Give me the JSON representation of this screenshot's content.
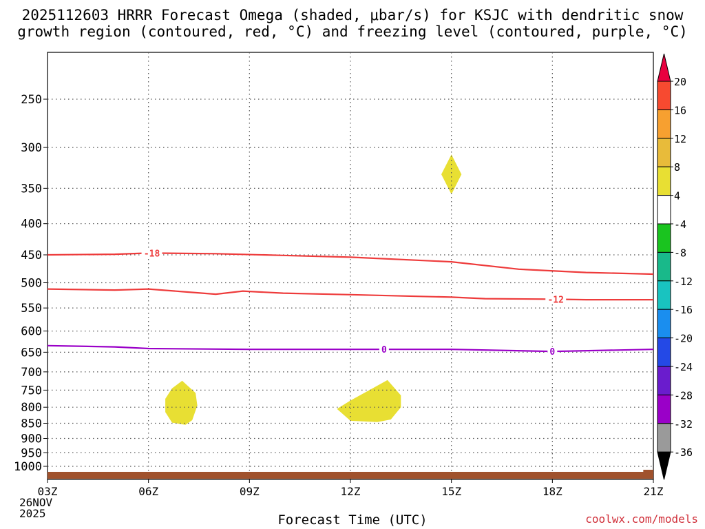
{
  "title_line1": "2025112603 HRRR Forecast Omega (shaded, μbar/s) for KSJC with dendritic snow",
  "title_line2": "growth region (contoured, red, °C) and freezing level (contoured, purple, °C)",
  "credit": "coolwx.com/models",
  "chart_data": {
    "type": "time-height cross section",
    "xlabel": "Forecast Time (UTC)",
    "x_ticks": [
      "03Z",
      "06Z",
      "09Z",
      "12Z",
      "15Z",
      "18Z",
      "21Z"
    ],
    "x_hours": [
      3,
      6,
      9,
      12,
      15,
      18,
      21
    ],
    "xlim": [
      3,
      21
    ],
    "start_date": [
      "26NOV",
      "2025"
    ],
    "y_ticks": [
      250,
      300,
      350,
      400,
      450,
      500,
      550,
      600,
      650,
      700,
      750,
      800,
      850,
      900,
      950,
      1000
    ],
    "ylim_hPa": [
      200,
      1030
    ],
    "y_scale": "log-pressure",
    "contours": [
      {
        "name": "dendritic -18C",
        "color": "#ee3b3b",
        "label": "-18",
        "label_at": 6.1,
        "points": [
          [
            3,
            450
          ],
          [
            5,
            449
          ],
          [
            6,
            447
          ],
          [
            8,
            448
          ],
          [
            10,
            451
          ],
          [
            12,
            454
          ],
          [
            15,
            462
          ],
          [
            17,
            475
          ],
          [
            19,
            481
          ],
          [
            21,
            484
          ]
        ]
      },
      {
        "name": "dendritic -12C",
        "color": "#ee3b3b",
        "label": "-12",
        "label_at": 18.1,
        "points": [
          [
            3,
            512
          ],
          [
            5,
            514
          ],
          [
            6,
            512
          ],
          [
            7,
            517
          ],
          [
            8,
            522
          ],
          [
            8.8,
            516
          ],
          [
            10,
            520
          ],
          [
            12,
            523
          ],
          [
            15,
            528
          ],
          [
            16,
            531
          ],
          [
            18,
            532
          ],
          [
            19,
            533
          ],
          [
            21,
            533
          ]
        ]
      },
      {
        "name": "freezing level 0C",
        "color": "#9a00c8",
        "label": "0",
        "label_at": [
          13,
          18
        ],
        "points": [
          [
            3,
            634
          ],
          [
            5,
            637
          ],
          [
            6,
            641
          ],
          [
            9,
            643
          ],
          [
            12,
            643
          ],
          [
            15,
            643
          ],
          [
            18,
            648
          ],
          [
            21,
            643
          ]
        ]
      }
    ],
    "shaded_regions": [
      {
        "value_range": [
          4,
          8
        ],
        "color": "#e8df33",
        "points": [
          [
            15,
            308
          ],
          [
            15.3,
            332
          ],
          [
            15,
            358
          ],
          [
            14.7,
            332
          ]
        ]
      },
      {
        "value_range": [
          4,
          8
        ],
        "color": "#e8df33",
        "points": [
          [
            7,
            724
          ],
          [
            7.4,
            758
          ],
          [
            7.45,
            795
          ],
          [
            7.3,
            840
          ],
          [
            7.1,
            855
          ],
          [
            6.7,
            848
          ],
          [
            6.5,
            815
          ],
          [
            6.5,
            775
          ],
          [
            6.7,
            745
          ]
        ]
      },
      {
        "value_range": [
          4,
          8
        ],
        "color": "#e8df33",
        "points": [
          [
            13.1,
            722
          ],
          [
            13.5,
            765
          ],
          [
            13.5,
            800
          ],
          [
            13.2,
            838
          ],
          [
            12.8,
            846
          ],
          [
            12,
            842
          ],
          [
            11.6,
            805
          ],
          [
            12,
            780
          ],
          [
            12.6,
            748
          ]
        ]
      }
    ],
    "colorbar": {
      "labels": [
        "20",
        "16",
        "12",
        "8",
        "4",
        "-4",
        "-8",
        "-12",
        "-16",
        "-20",
        "-24",
        "-28",
        "-32",
        "-36"
      ],
      "colors": [
        "#e8003f",
        "#f74a30",
        "#f7a030",
        "#e8bb3a",
        "#e8df33",
        "#ffffff",
        "#1ac41f",
        "#19b98a",
        "#19c3c0",
        "#1a8eef",
        "#2449e6",
        "#6a1ccd",
        "#9a00c8",
        "#9a9a9a",
        "#000000"
      ]
    }
  }
}
